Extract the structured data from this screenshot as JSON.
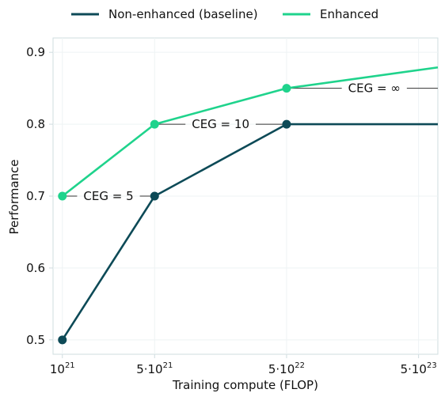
{
  "chart_data": {
    "type": "line",
    "title": "",
    "xlabel": "Training compute (FLOP)",
    "ylabel": "Performance",
    "x_scale": "log",
    "xlim": [
      8.5e+20,
      7e+23
    ],
    "ylim": [
      0.48,
      0.92
    ],
    "x_ticks": [
      {
        "value": 1e+21,
        "base": "10",
        "exp": "21"
      },
      {
        "value": 5e+21,
        "base": "5·10",
        "exp": "21"
      },
      {
        "value": 5e+22,
        "base": "5·10",
        "exp": "22"
      },
      {
        "value": 5e+23,
        "base": "5·10",
        "exp": "23"
      }
    ],
    "y_ticks": [
      {
        "value": 0.5,
        "label": "0.5"
      },
      {
        "value": 0.6,
        "label": "0.6"
      },
      {
        "value": 0.7,
        "label": "0.7"
      },
      {
        "value": 0.8,
        "label": "0.8"
      },
      {
        "value": 0.9,
        "label": "0.9"
      }
    ],
    "grid": true,
    "legend_position": "top",
    "series": [
      {
        "name": "Non-enhanced (baseline)",
        "color": "#0d4a57",
        "points": [
          {
            "x": 1e+21,
            "y": 0.5
          },
          {
            "x": 5e+21,
            "y": 0.7
          },
          {
            "x": 5e+22,
            "y": 0.8
          },
          {
            "x": 7e+23,
            "y": 0.8
          }
        ],
        "markers": [
          1e+21,
          5e+21,
          5e+22
        ]
      },
      {
        "name": "Enhanced",
        "color": "#1fd38c",
        "points": [
          {
            "x": 1e+21,
            "y": 0.7
          },
          {
            "x": 5e+21,
            "y": 0.8
          },
          {
            "x": 5e+22,
            "y": 0.85
          },
          {
            "x": 7e+23,
            "y": 0.879
          }
        ],
        "markers": [
          1e+21,
          5e+21,
          5e+22
        ]
      }
    ],
    "annotations": [
      {
        "label": "CEG = 5",
        "y": 0.7,
        "x_start": 1e+21,
        "x_end": 5e+21
      },
      {
        "label": "CEG = 10",
        "y": 0.8,
        "x_start": 5e+21,
        "x_end": 5e+22
      },
      {
        "label": "CEG = ∞",
        "y": 0.85,
        "x_start": 5e+22,
        "x_end": 7e+23
      }
    ]
  }
}
